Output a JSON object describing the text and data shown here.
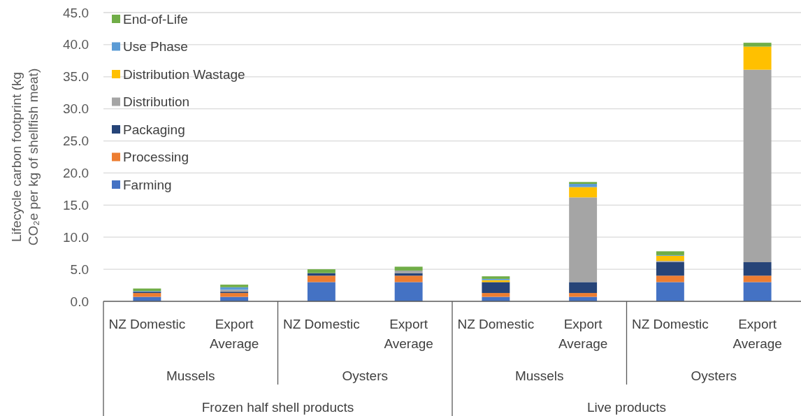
{
  "chart_data": {
    "type": "bar",
    "stacked": true,
    "ylabel": "Lifecycle carbon footprint (kg CO₂e per kg of shellfish meat)",
    "categories": [
      "NZ Domestic",
      "Export Average",
      "NZ Domestic",
      "Export Average",
      "NZ Domestic",
      "Export Average",
      "NZ Domestic",
      "Export Average"
    ],
    "series": [
      {
        "name": "Farming",
        "color": "#4472c4",
        "values": [
          0.7,
          0.7,
          3.0,
          3.0,
          0.7,
          0.7,
          3.0,
          3.0
        ]
      },
      {
        "name": "Processing",
        "color": "#ed7d31",
        "values": [
          0.6,
          0.6,
          1.0,
          1.0,
          0.6,
          0.6,
          1.0,
          1.0
        ]
      },
      {
        "name": "Packaging",
        "color": "#264478",
        "values": [
          0.2,
          0.2,
          0.4,
          0.4,
          1.7,
          1.7,
          2.1,
          2.1
        ]
      },
      {
        "name": "Distribution",
        "color": "#a5a5a5",
        "values": [
          null,
          0.3,
          null,
          0.4,
          null,
          13.2,
          0.2,
          30.0
        ]
      },
      {
        "name": "Distribution Wastage",
        "color": "#ffc000",
        "values": [
          null,
          null,
          null,
          null,
          0.3,
          1.6,
          0.8,
          3.6
        ]
      },
      {
        "name": "Use Phase",
        "color": "#5b9bd5",
        "values": [
          0.1,
          0.4,
          null,
          null,
          0.2,
          0.5,
          0.1,
          null
        ]
      },
      {
        "name": "End-of-Life",
        "color": "#70ad47",
        "values": [
          0.4,
          0.4,
          0.6,
          0.6,
          0.4,
          0.3,
          0.6,
          0.6
        ]
      }
    ],
    "ylim": [
      0,
      45
    ],
    "yticks": [
      {
        "value": 0,
        "label": "0.0"
      },
      {
        "value": 5,
        "label": "5.0"
      },
      {
        "value": 10,
        "label": "10.0"
      },
      {
        "value": 15,
        "label": "15.0"
      },
      {
        "value": 20,
        "label": "20.0"
      },
      {
        "value": 25,
        "label": "25.0"
      },
      {
        "value": 30,
        "label": "30.0"
      },
      {
        "value": 35,
        "label": "35.0"
      },
      {
        "value": 40,
        "label": "40.0"
      },
      {
        "value": 45,
        "label": "45.0"
      }
    ],
    "grid": "y",
    "legend": "top left",
    "annotations": [
      "Mussels",
      "Oysters",
      "Mussels",
      "Oysters",
      "Frozen half shell products",
      "Live products"
    ]
  }
}
